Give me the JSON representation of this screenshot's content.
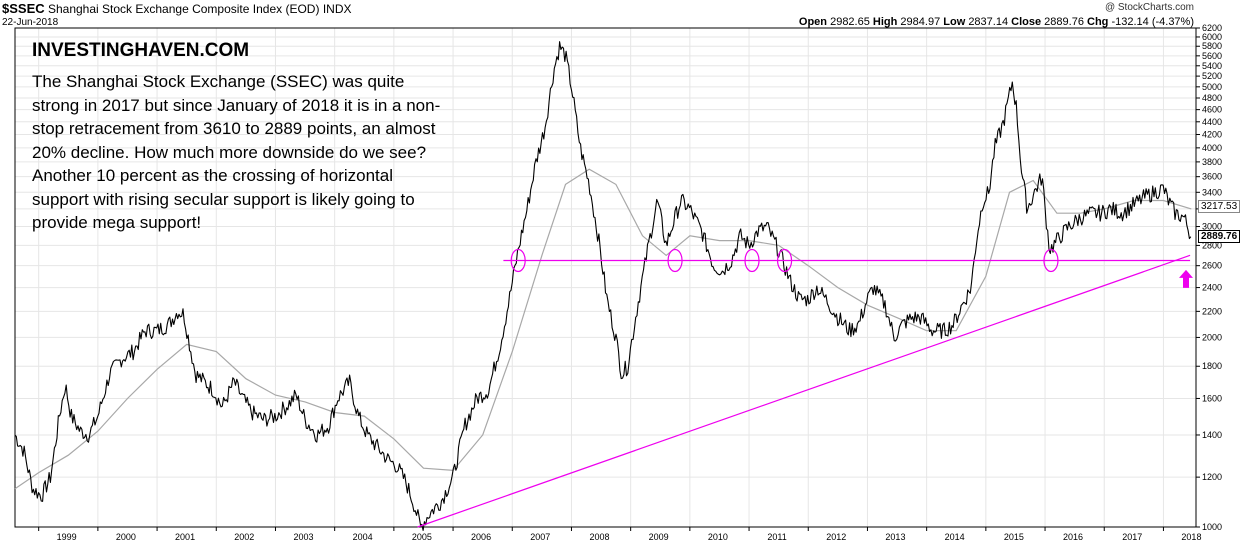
{
  "header": {
    "symbol": "$SSEC",
    "name": "Shanghai Stock Exchange Composite Index (EOD)",
    "exchange": "INDX",
    "date": "22-Jun-2018",
    "copyright": "@ StockCharts.com",
    "open_label": "Open",
    "open": "2982.65",
    "high_label": "High",
    "high": "2984.97",
    "low_label": "Low",
    "low": "2837.14",
    "close_label": "Close",
    "close": "2889.76",
    "chg_label": "Chg",
    "chg": "-132.14 (-4.37%)"
  },
  "annotation": {
    "brand": "INVESTINGHAVEN.COM",
    "text": "The Shanghai Stock Exchange (SSEC) was quite strong in 2017 but since January of 2018 it is in a non-stop retracement from 3610 to 2889 points, an almost 20% decline. How much more downside do we see? Another 10 percent as the crossing of horizontal support with rising secular support is likely going to provide mega support!"
  },
  "colors": {
    "price": "#000000",
    "moving_average": "#a8a8a8",
    "support": "#ee00ee",
    "grid": "#e6e6e6"
  },
  "chart_data": {
    "type": "line",
    "y_scale": "log",
    "ylim": [
      1000,
      6200
    ],
    "xlim": [
      1998.6,
      2018.55
    ],
    "y_ticks": [
      1000,
      1200,
      1400,
      1600,
      1800,
      2000,
      2200,
      2400,
      2600,
      2800,
      3000,
      3200,
      3400,
      3600,
      3800,
      4000,
      4200,
      4400,
      4600,
      4800,
      5000,
      5200,
      5400,
      5600,
      5800,
      6000,
      6200
    ],
    "x_ticks": [
      {
        "label": "1999",
        "x": 1999.0
      },
      {
        "label": "2000",
        "x": 2000.0
      },
      {
        "label": "2001",
        "x": 2001.0
      },
      {
        "label": "2002",
        "x": 2002.0
      },
      {
        "label": "2003",
        "x": 2003.0
      },
      {
        "label": "2004",
        "x": 2004.0
      },
      {
        "label": "2005",
        "x": 2005.0
      },
      {
        "label": "2006",
        "x": 2006.0
      },
      {
        "label": "2007",
        "x": 2007.0
      },
      {
        "label": "2008",
        "x": 2008.0
      },
      {
        "label": "2009",
        "x": 2009.0
      },
      {
        "label": "2010",
        "x": 2010.0
      },
      {
        "label": "2011",
        "x": 2011.0
      },
      {
        "label": "2012",
        "x": 2012.0
      },
      {
        "label": "2013",
        "x": 2013.0
      },
      {
        "label": "2014",
        "x": 2014.0
      },
      {
        "label": "2015",
        "x": 2015.0
      },
      {
        "label": "2016",
        "x": 2016.0
      },
      {
        "label": "2017",
        "x": 2017.0
      },
      {
        "label": "2018",
        "x": 2018.0
      }
    ],
    "price_labels": [
      {
        "label": "3217.53",
        "value": 3217.53
      },
      {
        "label": "2889.76",
        "value": 2889.76
      }
    ],
    "series": [
      {
        "x": [
          1998.6,
          1998.75,
          1998.9,
          1999.05,
          1999.2,
          1999.35,
          1999.45,
          1999.55,
          1999.7,
          1999.85,
          2000.0,
          2000.2,
          2000.4,
          2000.6,
          2000.8,
          2001.0,
          2001.2,
          2001.35,
          2001.45,
          2001.55,
          2001.65,
          2001.8,
          2001.95,
          2002.1,
          2002.3,
          2002.45,
          2002.6,
          2002.8,
          2003.0,
          2003.2,
          2003.35,
          2003.5,
          2003.7,
          2003.9,
          2004.05,
          2004.25,
          2004.4,
          2004.55,
          2004.75,
          2004.9,
          2005.05,
          2005.2,
          2005.35,
          2005.45,
          2005.6,
          2005.8,
          2006.0,
          2006.2,
          2006.4,
          2006.6,
          2006.8,
          2006.95,
          2007.1,
          2007.25,
          2007.4,
          2007.55,
          2007.7,
          2007.8,
          2007.9,
          2008.0,
          2008.15,
          2008.3,
          2008.45,
          2008.6,
          2008.75,
          2008.85,
          2008.95,
          2009.1,
          2009.3,
          2009.45,
          2009.6,
          2009.7,
          2009.85,
          2010.0,
          2010.2,
          2010.4,
          2010.55,
          2010.7,
          2010.85,
          2011.0,
          2011.15,
          2011.3,
          2011.5,
          2011.7,
          2011.85,
          2012.0,
          2012.15,
          2012.3,
          2012.5,
          2012.7,
          2012.85,
          2013.0,
          2013.1,
          2013.3,
          2013.45,
          2013.6,
          2013.75,
          2013.9,
          2014.1,
          2014.3,
          2014.45,
          2014.6,
          2014.75,
          2014.85,
          2014.95,
          2015.05,
          2015.15,
          2015.3,
          2015.45,
          2015.52,
          2015.6,
          2015.7,
          2015.85,
          2015.95,
          2016.0,
          2016.08,
          2016.2,
          2016.4,
          2016.6,
          2016.8,
          2016.95,
          2017.1,
          2017.3,
          2017.5,
          2017.7,
          2017.85,
          2018.0,
          2018.08,
          2018.2,
          2018.35,
          2018.47
        ],
        "y": [
          1400,
          1320,
          1150,
          1120,
          1200,
          1500,
          1680,
          1500,
          1420,
          1400,
          1500,
          1750,
          1850,
          1900,
          2050,
          2050,
          2100,
          2200,
          2180,
          1950,
          1750,
          1700,
          1650,
          1550,
          1700,
          1600,
          1520,
          1480,
          1500,
          1560,
          1620,
          1480,
          1400,
          1450,
          1600,
          1700,
          1500,
          1400,
          1330,
          1280,
          1250,
          1180,
          1080,
          1000,
          1050,
          1100,
          1200,
          1450,
          1600,
          1650,
          1950,
          2300,
          2750,
          3200,
          3800,
          4300,
          5300,
          5800,
          5600,
          5000,
          4000,
          3500,
          2900,
          2300,
          2000,
          1750,
          1800,
          2200,
          2800,
          3300,
          2800,
          3000,
          3300,
          3200,
          2950,
          2600,
          2550,
          2650,
          2900,
          2800,
          2950,
          3000,
          2750,
          2450,
          2300,
          2300,
          2400,
          2300,
          2150,
          2050,
          2100,
          2300,
          2400,
          2250,
          2000,
          2100,
          2150,
          2150,
          2050,
          2050,
          2100,
          2250,
          2400,
          2900,
          3300,
          3400,
          4000,
          4400,
          5100,
          4600,
          3700,
          3200,
          3450,
          3600,
          3200,
          2750,
          2850,
          3000,
          3100,
          3150,
          3150,
          3200,
          3150,
          3250,
          3350,
          3400,
          3450,
          3300,
          3150,
          3100,
          2890
        ]
      },
      {
        "x": [
          1998.6,
          1999.0,
          1999.5,
          2000.0,
          2000.5,
          2001.0,
          2001.5,
          2002.0,
          2002.5,
          2003.0,
          2003.5,
          2004.0,
          2004.5,
          2005.0,
          2005.5,
          2006.0,
          2006.5,
          2007.0,
          2007.5,
          2007.9,
          2008.3,
          2008.75,
          2009.2,
          2009.6,
          2010.0,
          2010.5,
          2011.0,
          2011.5,
          2012.0,
          2012.5,
          2013.0,
          2013.5,
          2014.0,
          2014.5,
          2015.0,
          2015.4,
          2015.8,
          2016.2,
          2016.6,
          2017.0,
          2017.5,
          2018.0,
          2018.47
        ],
        "y": [
          1150,
          1220,
          1300,
          1420,
          1600,
          1780,
          1950,
          1900,
          1720,
          1620,
          1580,
          1520,
          1500,
          1380,
          1240,
          1230,
          1400,
          1900,
          2700,
          3500,
          3700,
          3500,
          2900,
          2700,
          2900,
          2850,
          2850,
          2800,
          2600,
          2400,
          2250,
          2150,
          2050,
          2050,
          2500,
          3400,
          3550,
          3150,
          3150,
          3200,
          3300,
          3300,
          3200
        ]
      }
    ],
    "support_lines": [
      {
        "type": "horizontal",
        "value": 2650,
        "x_range": [
          2006.85,
          2018.45
        ]
      },
      {
        "type": "rising",
        "from": {
          "x": 2005.4,
          "y": 1000
        },
        "to": {
          "x": 2018.45,
          "y": 2700
        }
      }
    ],
    "highlight_points": [
      {
        "x": 2007.1,
        "y": 2650
      },
      {
        "x": 2009.75,
        "y": 2650
      },
      {
        "x": 2011.05,
        "y": 2650
      },
      {
        "x": 2011.6,
        "y": 2650
      },
      {
        "x": 2016.1,
        "y": 2650
      }
    ]
  }
}
